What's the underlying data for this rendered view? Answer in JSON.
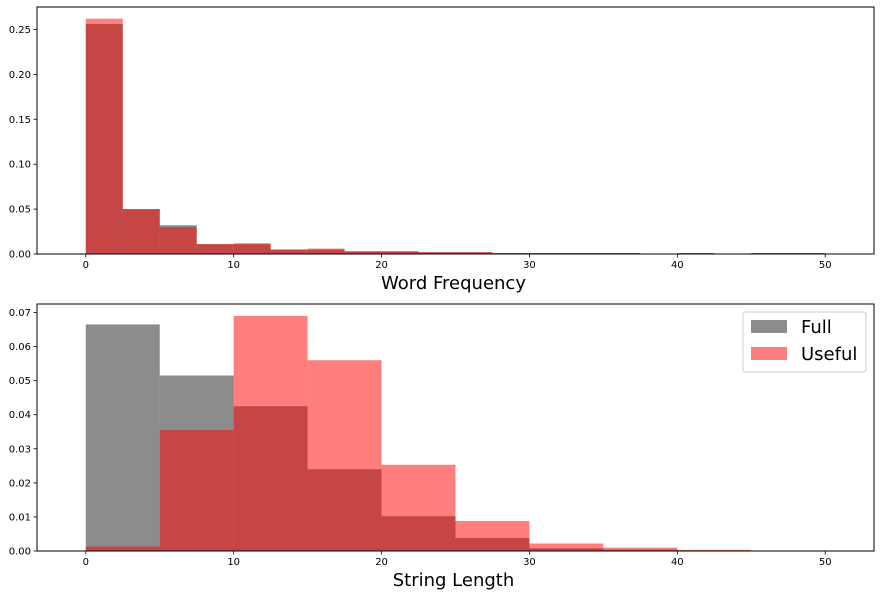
{
  "chart_data": [
    {
      "type": "bar",
      "xlabel": "Word Frequency",
      "ylabel": "",
      "xlim": [
        -3.3,
        53.3
      ],
      "ylim": [
        0,
        0.275
      ],
      "xticks": [
        0,
        10,
        20,
        30,
        40,
        50
      ],
      "yticks": [
        0.0,
        0.05,
        0.1,
        0.15,
        0.2,
        0.25
      ],
      "bin_edges": [
        0,
        2.5,
        5,
        7.5,
        10,
        12.5,
        15,
        17.5,
        20,
        22.5,
        25,
        27.5,
        30,
        32.5,
        35,
        37.5,
        40,
        42.5,
        45,
        47.5,
        50
      ],
      "series": [
        {
          "values": [
            0.256,
            0.05,
            0.032,
            0.011,
            0.011,
            0.005,
            0.005,
            0.003,
            0.003,
            0.002,
            0.002,
            0.001,
            0.001,
            0.001,
            0.001,
            0.0,
            0.001,
            0.0,
            0.001,
            0.001
          ],
          "color": "#1a1a1a"
        },
        {
          "values": [
            0.262,
            0.05,
            0.03,
            0.011,
            0.012,
            0.005,
            0.006,
            0.003,
            0.003,
            0.002,
            0.002,
            0.001,
            0.001,
            0.001,
            0.001,
            0.0,
            0.001,
            0.0,
            0.001,
            0.001
          ],
          "color": "#ff0000"
        }
      ],
      "grid": false,
      "legend": false
    },
    {
      "type": "bar",
      "xlabel": "String Length",
      "ylabel": "",
      "xlim": [
        -3.3,
        53.3
      ],
      "ylim": [
        0,
        0.0725
      ],
      "xticks": [
        0,
        10,
        20,
        30,
        40,
        50
      ],
      "yticks": [
        0.0,
        0.01,
        0.02,
        0.03,
        0.04,
        0.05,
        0.06,
        0.07
      ],
      "bin_edges": [
        0,
        5,
        10,
        15,
        20,
        25,
        30,
        35,
        40,
        45,
        50
      ],
      "series": [
        {
          "name": "Full",
          "values": [
            0.0665,
            0.0515,
            0.0425,
            0.024,
            0.0102,
            0.0038,
            0.0008,
            0.0004,
            0.0002,
            0.0001
          ],
          "color": "#1a1a1a"
        },
        {
          "name": "Useful",
          "values": [
            0.0013,
            0.0355,
            0.069,
            0.056,
            0.0253,
            0.0088,
            0.0022,
            0.001,
            0.0003,
            0.0001
          ],
          "color": "#ff0000"
        }
      ],
      "grid": false,
      "legend": "top-right"
    }
  ]
}
